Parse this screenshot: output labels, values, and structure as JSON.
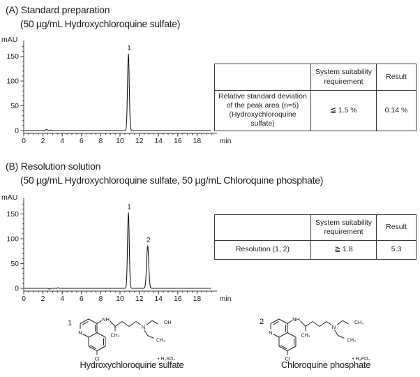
{
  "panel_a": {
    "title": "(A) Standard preparation",
    "subtitle": "(50 µg/mL Hydroxychloroquine sulfate)",
    "table": {
      "headers": [
        "",
        "System  suitability\nrequirement",
        "Result"
      ],
      "rows": [
        [
          "Relative standard deviation\nof the peak area (n=5)\n(Hydroxychloroquine sulfate)",
          "≦ 1.5 %",
          "0.14 %"
        ]
      ]
    }
  },
  "panel_b": {
    "title": "(B) Resolution solution",
    "subtitle": "(50 µg/mL Hydroxychloroquine sulfate, 50 µg/mL Chloroquine phosphate)",
    "table": {
      "headers": [
        "",
        "System  suitability\nrequirement",
        "Result"
      ],
      "rows": [
        [
          "Resolution (1, 2)",
          "≧  1.8",
          "5.3"
        ]
      ]
    }
  },
  "chart_data": [
    {
      "type": "line",
      "subtype": "hplc-chromatogram",
      "panel": "A",
      "ylabel": "mAU",
      "xlabel": "min",
      "xlim": [
        0,
        19.5
      ],
      "ylim": [
        -5,
        178
      ],
      "xticks": [
        0,
        2,
        4,
        6,
        8,
        10,
        12,
        14,
        16,
        18
      ],
      "yticks": [
        0,
        50,
        100,
        150
      ],
      "x_minor_step": 0.5,
      "y_minor_step": 10,
      "grid": false,
      "peaks": [
        {
          "label": "1",
          "rt_min": 10.8,
          "height_mau": 155,
          "sigma_min": 0.09
        }
      ],
      "noise": [
        {
          "rt_min": 2.3,
          "height_mau": 2.2,
          "sigma_min": 0.1
        },
        {
          "rt_min": 2.7,
          "height_mau": 1.0,
          "sigma_min": 0.08
        }
      ]
    },
    {
      "type": "line",
      "subtype": "hplc-chromatogram",
      "panel": "B",
      "ylabel": "mAU",
      "xlabel": "min",
      "xlim": [
        0,
        19.5
      ],
      "ylim": [
        -5,
        178
      ],
      "xticks": [
        0,
        2,
        4,
        6,
        8,
        10,
        12,
        14,
        16,
        18
      ],
      "yticks": [
        0,
        50,
        100,
        150
      ],
      "x_minor_step": 0.5,
      "y_minor_step": 10,
      "grid": false,
      "peaks": [
        {
          "label": "1",
          "rt_min": 10.8,
          "height_mau": 153,
          "sigma_min": 0.09
        },
        {
          "label": "2",
          "rt_min": 12.8,
          "height_mau": 86,
          "sigma_min": 0.11
        }
      ],
      "noise": [
        {
          "rt_min": 2.6,
          "height_mau": -1.8,
          "sigma_min": 0.05
        },
        {
          "rt_min": 3.5,
          "height_mau": 1.2,
          "sigma_min": 0.06
        }
      ]
    }
  ],
  "structures": [
    {
      "number": "1",
      "caption": "Hydroxychloroquine sulfate",
      "salt": "•  H₂SO₄",
      "labels": {
        "ring_n": "N",
        "nh": "NH",
        "branch_ch3": "CH₃",
        "amine_n": "N",
        "upper_terminal": "OH",
        "lower_terminal": "CH₃",
        "cl": "Cl"
      }
    },
    {
      "number": "2",
      "caption": "Chloroquine phosphate",
      "salt": "•  H₃PO₄",
      "labels": {
        "ring_n": "N",
        "nh": "NH",
        "branch_ch3": "CH₃",
        "amine_n": "N",
        "upper_terminal": "CH₃",
        "lower_terminal": "CH₃",
        "cl": "Cl"
      }
    }
  ]
}
